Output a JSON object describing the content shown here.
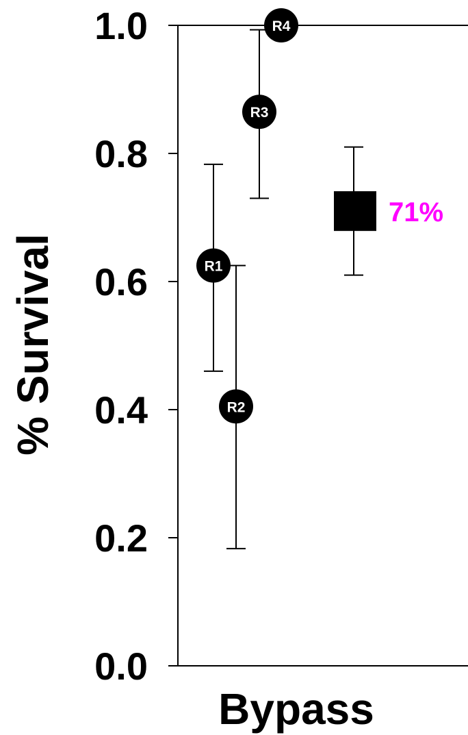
{
  "chart_data": {
    "type": "scatter",
    "ylabel": "% Survival",
    "xlabel": "",
    "categories": [
      "Bypass"
    ],
    "ylim": [
      0,
      1.0
    ],
    "yticks": [
      "0.0",
      "0.2",
      "0.4",
      "0.6",
      "0.8",
      "1.0"
    ],
    "ytick_values": [
      0,
      0.2,
      0.4,
      0.6,
      0.8,
      1.0
    ],
    "grid": false,
    "points": [
      {
        "label": "R1",
        "value": 0.625,
        "ci_low": 0.46,
        "ci_high": 0.783
      },
      {
        "label": "R2",
        "value": 0.405,
        "ci_low": 0.183,
        "ci_high": 0.625
      },
      {
        "label": "R3",
        "value": 0.865,
        "ci_low": 0.73,
        "ci_high": 0.993
      },
      {
        "label": "R4",
        "value": 1.0,
        "ci_low": 0.993,
        "ci_high": 1.0
      }
    ],
    "summary": {
      "label": "71%",
      "value": 0.71,
      "ci_low": 0.61,
      "ci_high": 0.81,
      "color": "#ff00ff"
    }
  }
}
